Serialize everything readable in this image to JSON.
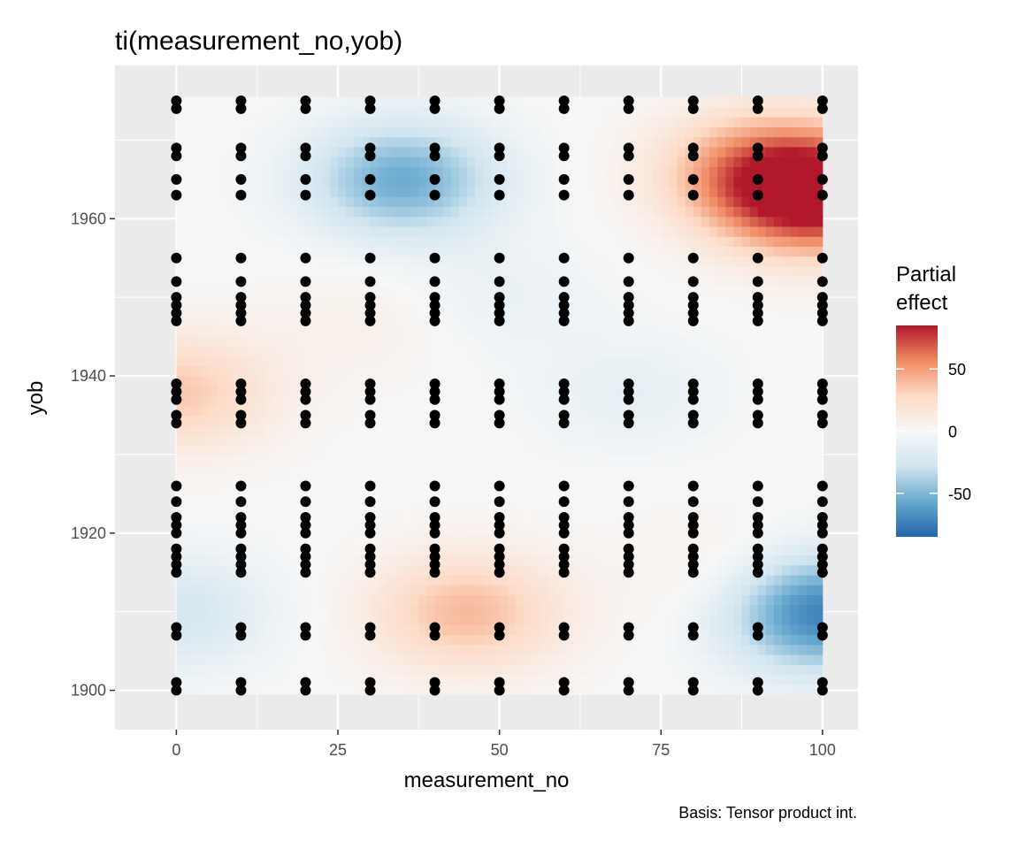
{
  "chart_data": {
    "type": "heatmap",
    "title": "ti(measurement_no,yob)",
    "caption": "Basis: Tensor product int.",
    "xlabel": "measurement_no",
    "ylabel": "yob",
    "xlim": [
      -9.5,
      105.5
    ],
    "ylim": [
      1895,
      1979.5
    ],
    "x_ticks": [
      0,
      25,
      50,
      75,
      100
    ],
    "x_tick_labels": [
      "0",
      "25",
      "50",
      "75",
      "100"
    ],
    "y_ticks": [
      1900,
      1920,
      1940,
      1960
    ],
    "y_tick_labels": [
      "1900",
      "1920",
      "1940",
      "1960"
    ],
    "surface_range": {
      "x": [
        0,
        100
      ],
      "y": [
        1899.5,
        1975.5
      ]
    },
    "grid": true,
    "legend": {
      "title_lines": [
        "Partial",
        "effect"
      ],
      "position": "right",
      "range": [
        -85,
        85
      ],
      "ticks": [
        50,
        0,
        -50
      ],
      "tick_labels": [
        "50",
        "0",
        "-50"
      ],
      "colors": [
        "#b2182b",
        "#ef8a62",
        "#fddbc7",
        "#f7f7f7",
        "#d1e5f0",
        "#67a9cf",
        "#2166ac"
      ]
    },
    "effect_peaks": [
      {
        "x": 100,
        "y": 1963,
        "value": 85
      },
      {
        "x": 90,
        "y": 1966,
        "value": 50
      },
      {
        "x": 35,
        "y": 1965,
        "value": -55
      },
      {
        "x": 100,
        "y": 1910,
        "value": -75
      },
      {
        "x": 45,
        "y": 1910,
        "value": 40
      },
      {
        "x": 0,
        "y": 1938,
        "value": 35
      },
      {
        "x": 0,
        "y": 1910,
        "value": -25
      },
      {
        "x": 70,
        "y": 1938,
        "value": -12
      },
      {
        "x": 50,
        "y": 1950,
        "value": -10
      },
      {
        "x": 85,
        "y": 1915,
        "value": 10
      },
      {
        "x": 30,
        "y": 1947,
        "value": 8
      }
    ],
    "points": {
      "x": [
        0,
        10,
        20,
        30,
        40,
        50,
        60,
        70,
        80,
        90,
        100
      ],
      "y": [
        1900,
        1901,
        1907,
        1908,
        1915,
        1916,
        1917,
        1918,
        1920,
        1921,
        1922,
        1924,
        1926,
        1934,
        1935,
        1937,
        1938,
        1939,
        1947,
        1948,
        1949,
        1950,
        1952,
        1955,
        1963,
        1965,
        1968,
        1969,
        1974,
        1975
      ]
    }
  }
}
